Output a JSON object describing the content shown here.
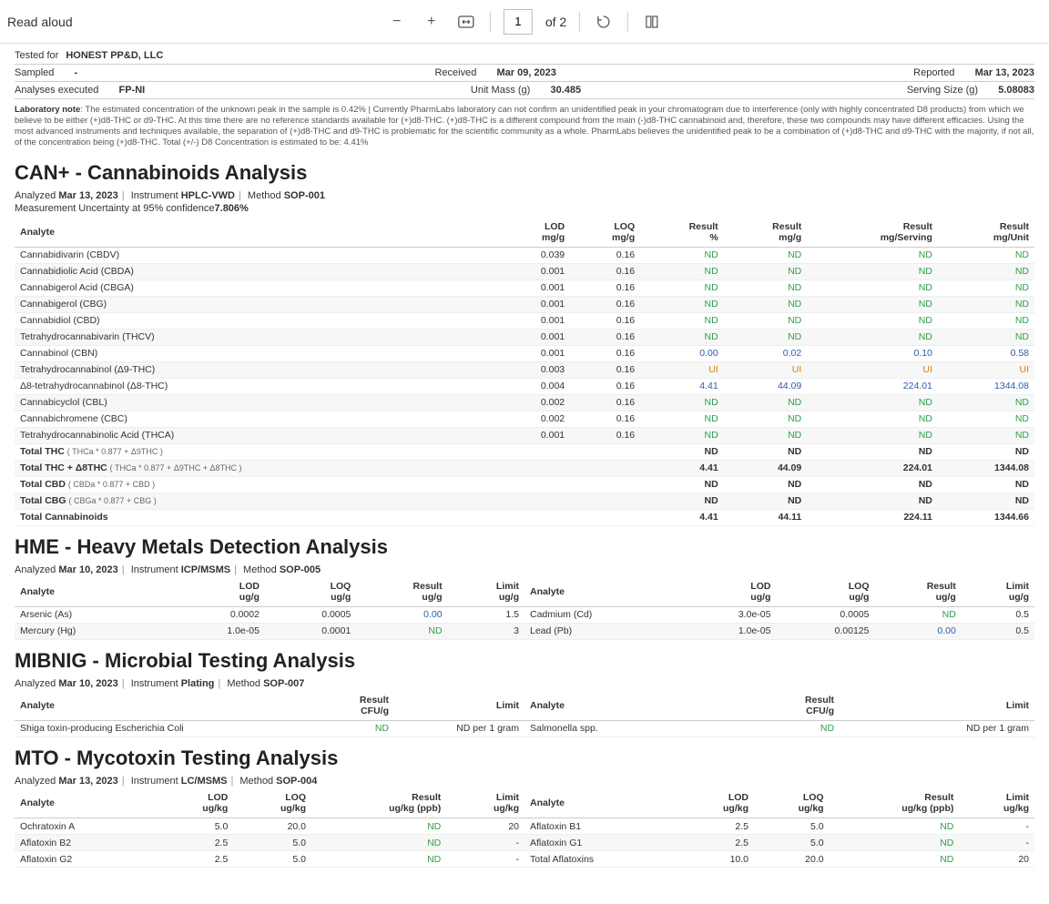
{
  "toolbar": {
    "read_aloud": "Read aloud",
    "page_current": "1",
    "page_total": "of 2"
  },
  "header": {
    "tested_for_lbl": "Tested for",
    "tested_for": "HONEST PP&D, LLC",
    "sampled_lbl": "Sampled",
    "sampled": "-",
    "received_lbl": "Received",
    "received": "Mar 09, 2023",
    "reported_lbl": "Reported",
    "reported": "Mar 13, 2023",
    "analyses_lbl": "Analyses executed",
    "analyses": "FP-NI",
    "unit_mass_lbl": "Unit Mass (g)",
    "unit_mass": "30.485",
    "serving_lbl": "Serving Size (g)",
    "serving": "5.08083"
  },
  "labnote_label": "Laboratory note",
  "labnote": ": The estimated concentration of the unknown peak in the sample is 0.42% | Currently PharmLabs laboratory can not confirm an unidentified peak in your chromatogram due to interference (only with highly concentrated D8 products) from which we believe to be either (+)d8-THC or d9-THC. At this time there are no reference standards available for (+)d8-THC. (+)d8-THC is a different compound from the main (-)d8-THC cannabinoid and, therefore, these two compounds may have different efficacies. Using the most advanced instruments and techniques available, the separation of (+)d8-THC and d9-THC is problematic for the scientific community as a whole. PharmLabs believes the unidentified peak to be a combination of (+)d8-THC and d9-THC with the majority, if not all, of the concentration being (+)d8-THC. Total (+/-) D8 Concentration is estimated to be: 4.41%",
  "can": {
    "title": "CAN+ - Cannabinoids Analysis",
    "analyzed": "Mar 13, 2023",
    "instrument": "HPLC-VWD",
    "method": "SOP-001",
    "uncert_lbl": "Measurement Uncertainty at 95% confidence",
    "uncert_val": "7.806%",
    "cols": [
      "Analyte",
      "LOD mg/g",
      "LOQ mg/g",
      "Result %",
      "Result mg/g",
      "Result mg/Serving",
      "Result mg/Unit"
    ],
    "rows": [
      {
        "a": "Cannabidivarin (CBDV)",
        "lod": "0.039",
        "loq": "0.16",
        "p": {
          "v": "ND",
          "cls": "nd-g"
        },
        "mgg": {
          "v": "ND",
          "cls": "nd-g"
        },
        "mgs": {
          "v": "ND",
          "cls": "nd-g"
        },
        "mgu": {
          "v": "ND",
          "cls": "nd-g"
        }
      },
      {
        "a": "Cannabidiolic Acid (CBDA)",
        "lod": "0.001",
        "loq": "0.16",
        "p": {
          "v": "ND",
          "cls": "nd-g"
        },
        "mgg": {
          "v": "ND",
          "cls": "nd-g"
        },
        "mgs": {
          "v": "ND",
          "cls": "nd-g"
        },
        "mgu": {
          "v": "ND",
          "cls": "nd-g"
        }
      },
      {
        "a": "Cannabigerol Acid (CBGA)",
        "lod": "0.001",
        "loq": "0.16",
        "p": {
          "v": "ND",
          "cls": "nd-g"
        },
        "mgg": {
          "v": "ND",
          "cls": "nd-g"
        },
        "mgs": {
          "v": "ND",
          "cls": "nd-g"
        },
        "mgu": {
          "v": "ND",
          "cls": "nd-g"
        }
      },
      {
        "a": "Cannabigerol (CBG)",
        "lod": "0.001",
        "loq": "0.16",
        "p": {
          "v": "ND",
          "cls": "nd-g"
        },
        "mgg": {
          "v": "ND",
          "cls": "nd-g"
        },
        "mgs": {
          "v": "ND",
          "cls": "nd-g"
        },
        "mgu": {
          "v": "ND",
          "cls": "nd-g"
        }
      },
      {
        "a": "Cannabidiol (CBD)",
        "lod": "0.001",
        "loq": "0.16",
        "p": {
          "v": "ND",
          "cls": "nd-g"
        },
        "mgg": {
          "v": "ND",
          "cls": "nd-g"
        },
        "mgs": {
          "v": "ND",
          "cls": "nd-g"
        },
        "mgu": {
          "v": "ND",
          "cls": "nd-g"
        }
      },
      {
        "a": "Tetrahydrocannabivarin (THCV)",
        "lod": "0.001",
        "loq": "0.16",
        "p": {
          "v": "ND",
          "cls": "nd-g"
        },
        "mgg": {
          "v": "ND",
          "cls": "nd-g"
        },
        "mgs": {
          "v": "ND",
          "cls": "nd-g"
        },
        "mgu": {
          "v": "ND",
          "cls": "nd-g"
        }
      },
      {
        "a": "Cannabinol (CBN)",
        "lod": "0.001",
        "loq": "0.16",
        "p": {
          "v": "0.00",
          "cls": "v-b"
        },
        "mgg": {
          "v": "0.02",
          "cls": "v-b"
        },
        "mgs": {
          "v": "0.10",
          "cls": "v-b"
        },
        "mgu": {
          "v": "0.58",
          "cls": "v-b"
        }
      },
      {
        "a": "Tetrahydrocannabinol (Δ9-THC)",
        "lod": "0.003",
        "loq": "0.16",
        "p": {
          "v": "UI",
          "cls": "ui-o"
        },
        "mgg": {
          "v": "UI",
          "cls": "ui-o"
        },
        "mgs": {
          "v": "UI",
          "cls": "ui-o"
        },
        "mgu": {
          "v": "UI",
          "cls": "ui-o"
        }
      },
      {
        "a": "Δ8-tetrahydrocannabinol (Δ8-THC)",
        "lod": "0.004",
        "loq": "0.16",
        "p": {
          "v": "4.41",
          "cls": "v-b"
        },
        "mgg": {
          "v": "44.09",
          "cls": "v-b"
        },
        "mgs": {
          "v": "224.01",
          "cls": "v-b"
        },
        "mgu": {
          "v": "1344.08",
          "cls": "v-b"
        }
      },
      {
        "a": "Cannabicyclol (CBL)",
        "lod": "0.002",
        "loq": "0.16",
        "p": {
          "v": "ND",
          "cls": "nd-g"
        },
        "mgg": {
          "v": "ND",
          "cls": "nd-g"
        },
        "mgs": {
          "v": "ND",
          "cls": "nd-g"
        },
        "mgu": {
          "v": "ND",
          "cls": "nd-g"
        }
      },
      {
        "a": "Cannabichromene (CBC)",
        "lod": "0.002",
        "loq": "0.16",
        "p": {
          "v": "ND",
          "cls": "nd-g"
        },
        "mgg": {
          "v": "ND",
          "cls": "nd-g"
        },
        "mgs": {
          "v": "ND",
          "cls": "nd-g"
        },
        "mgu": {
          "v": "ND",
          "cls": "nd-g"
        }
      },
      {
        "a": "Tetrahydrocannabinolic Acid (THCA)",
        "lod": "0.001",
        "loq": "0.16",
        "p": {
          "v": "ND",
          "cls": "nd-g"
        },
        "mgg": {
          "v": "ND",
          "cls": "nd-g"
        },
        "mgs": {
          "v": "ND",
          "cls": "nd-g"
        },
        "mgu": {
          "v": "ND",
          "cls": "nd-g"
        }
      }
    ],
    "totals": [
      {
        "a": "Total THC",
        "sub": "( THCa * 0.877 + Δ9THC )",
        "p": "ND",
        "mgg": "ND",
        "mgs": "ND",
        "mgu": "ND"
      },
      {
        "a": "Total THC + Δ8THC",
        "sub": "( THCa * 0.877 + Δ9THC + Δ8THC )",
        "p": "4.41",
        "mgg": "44.09",
        "mgs": "224.01",
        "mgu": "1344.08"
      },
      {
        "a": "Total CBD",
        "sub": "( CBDa * 0.877 + CBD )",
        "p": "ND",
        "mgg": "ND",
        "mgs": "ND",
        "mgu": "ND"
      },
      {
        "a": "Total CBG",
        "sub": "( CBGa * 0.877 + CBG )",
        "p": "ND",
        "mgg": "ND",
        "mgs": "ND",
        "mgu": "ND"
      },
      {
        "a": "Total Cannabinoids",
        "sub": "",
        "p": "4.41",
        "mgg": "44.11",
        "mgs": "224.11",
        "mgu": "1344.66"
      }
    ]
  },
  "hme": {
    "title": "HME - Heavy Metals Detection Analysis",
    "analyzed": "Mar 10, 2023",
    "instrument": "ICP/MSMS",
    "method": "SOP-005",
    "cols": [
      "Analyte",
      "LOD ug/g",
      "LOQ ug/g",
      "Result ug/g",
      "Limit ug/g"
    ],
    "left": [
      {
        "a": "Arsenic (As)",
        "lod": "0.0002",
        "loq": "0.0005",
        "res": {
          "v": "0.00",
          "cls": "v-b"
        },
        "lim": "1.5"
      },
      {
        "a": "Mercury (Hg)",
        "lod": "1.0e-05",
        "loq": "0.0001",
        "res": {
          "v": "ND",
          "cls": "nd-g"
        },
        "lim": "3"
      }
    ],
    "right": [
      {
        "a": "Cadmium (Cd)",
        "lod": "3.0e-05",
        "loq": "0.0005",
        "res": {
          "v": "ND",
          "cls": "nd-g"
        },
        "lim": "0.5"
      },
      {
        "a": "Lead (Pb)",
        "lod": "1.0e-05",
        "loq": "0.00125",
        "res": {
          "v": "0.00",
          "cls": "v-b"
        },
        "lim": "0.5"
      }
    ]
  },
  "mib": {
    "title": "MIBNIG - Microbial Testing Analysis",
    "analyzed": "Mar 10, 2023",
    "instrument": "Plating",
    "method": "SOP-007",
    "cols": [
      "Analyte",
      "Result CFU/g",
      "Limit"
    ],
    "left": [
      {
        "a": "Shiga toxin-producing Escherichia Coli",
        "res": {
          "v": "ND",
          "cls": "nd-g"
        },
        "lim": "ND per 1 gram"
      }
    ],
    "right": [
      {
        "a": "Salmonella spp.",
        "res": {
          "v": "ND",
          "cls": "nd-g"
        },
        "lim": "ND per 1 gram"
      }
    ]
  },
  "mto": {
    "title": "MTO - Mycotoxin Testing Analysis",
    "analyzed": "Mar 13, 2023",
    "instrument": "LC/MSMS",
    "method": "SOP-004",
    "cols": [
      "Analyte",
      "LOD ug/kg",
      "LOQ ug/kg",
      "Result ug/kg (ppb)",
      "Limit ug/kg"
    ],
    "left": [
      {
        "a": "Ochratoxin A",
        "lod": "5.0",
        "loq": "20.0",
        "res": {
          "v": "ND",
          "cls": "nd-g"
        },
        "lim": "20"
      },
      {
        "a": "Aflatoxin B2",
        "lod": "2.5",
        "loq": "5.0",
        "res": {
          "v": "ND",
          "cls": "nd-g"
        },
        "lim": "-"
      },
      {
        "a": "Aflatoxin G2",
        "lod": "2.5",
        "loq": "5.0",
        "res": {
          "v": "ND",
          "cls": "nd-g"
        },
        "lim": "-"
      }
    ],
    "right": [
      {
        "a": "Aflatoxin B1",
        "lod": "2.5",
        "loq": "5.0",
        "res": {
          "v": "ND",
          "cls": "nd-g"
        },
        "lim": "-"
      },
      {
        "a": "Aflatoxin G1",
        "lod": "2.5",
        "loq": "5.0",
        "res": {
          "v": "ND",
          "cls": "nd-g"
        },
        "lim": "-"
      },
      {
        "a": "Total Aflatoxins",
        "lod": "10.0",
        "loq": "20.0",
        "res": {
          "v": "ND",
          "cls": "nd-g"
        },
        "lim": "20"
      }
    ]
  },
  "labels": {
    "analyzed": "Analyzed",
    "instrument": "Instrument",
    "method": "Method"
  }
}
